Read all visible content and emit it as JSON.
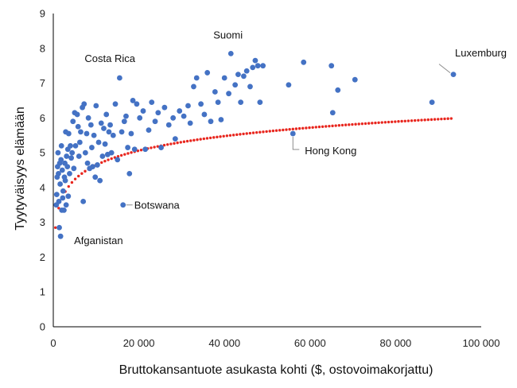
{
  "chart_data": {
    "type": "scatter",
    "xlabel": "Bruttokansantuote asukasta kohti ($, ostovoimakorjattu)",
    "ylabel": "Tyytyväisyys elämään",
    "xlim": [
      0,
      100000
    ],
    "ylim": [
      0,
      9
    ],
    "x_ticks": [
      0,
      20000,
      40000,
      60000,
      80000,
      100000
    ],
    "x_tick_labels": [
      "0",
      "20 000",
      "40 000",
      "60 000",
      "80 000",
      "100 000"
    ],
    "y_ticks": [
      0,
      1,
      2,
      3,
      4,
      5,
      6,
      7,
      8,
      9
    ],
    "y_tick_labels": [
      "0",
      "1",
      "2",
      "3",
      "4",
      "5",
      "6",
      "7",
      "8",
      "9"
    ],
    "grid": false,
    "legend": "none",
    "colors": {
      "points": "#4472c4",
      "trend": "#e8261e",
      "axis": "#000000",
      "leader": "#8c8c8c"
    },
    "trendline": {
      "type": "logarithmic",
      "a": 0.6,
      "b": -0.88,
      "x_start": 500,
      "x_end": 93000
    },
    "points": [
      [
        700,
        3.5
      ],
      [
        800,
        3.8
      ],
      [
        900,
        4.3
      ],
      [
        1000,
        4.6
      ],
      [
        1100,
        5.0
      ],
      [
        1200,
        4.4
      ],
      [
        1300,
        3.6
      ],
      [
        1400,
        2.85
      ],
      [
        1500,
        4.7
      ],
      [
        1600,
        4.1
      ],
      [
        1700,
        2.6
      ],
      [
        1800,
        4.8
      ],
      [
        1900,
        5.2
      ],
      [
        2000,
        3.35
      ],
      [
        2100,
        4.5
      ],
      [
        2200,
        3.7
      ],
      [
        2300,
        3.9
      ],
      [
        2500,
        3.35
      ],
      [
        2600,
        4.3
      ],
      [
        2700,
        4.7
      ],
      [
        2800,
        4.2
      ],
      [
        2900,
        5.6
      ],
      [
        3000,
        3.5
      ],
      [
        3100,
        4.9
      ],
      [
        3300,
        4.6
      ],
      [
        3400,
        5.1
      ],
      [
        3500,
        3.75
      ],
      [
        3600,
        5.55
      ],
      [
        3800,
        4.4
      ],
      [
        4000,
        5.2
      ],
      [
        4200,
        4.85
      ],
      [
        4400,
        5.0
      ],
      [
        4600,
        5.9
      ],
      [
        4800,
        4.55
      ],
      [
        5000,
        6.15
      ],
      [
        5200,
        5.2
      ],
      [
        5600,
        6.1
      ],
      [
        5800,
        5.75
      ],
      [
        6000,
        4.9
      ],
      [
        6200,
        5.3
      ],
      [
        6400,
        5.6
      ],
      [
        6800,
        6.3
      ],
      [
        7000,
        3.6
      ],
      [
        7200,
        6.4
      ],
      [
        7500,
        5.0
      ],
      [
        7800,
        5.55
      ],
      [
        8000,
        4.7
      ],
      [
        8200,
        6.0
      ],
      [
        8500,
        4.55
      ],
      [
        8800,
        5.8
      ],
      [
        9000,
        5.15
      ],
      [
        9200,
        4.6
      ],
      [
        9500,
        5.5
      ],
      [
        9800,
        4.3
      ],
      [
        10000,
        6.35
      ],
      [
        10300,
        4.65
      ],
      [
        10600,
        5.3
      ],
      [
        10900,
        4.2
      ],
      [
        11200,
        5.85
      ],
      [
        11500,
        4.9
      ],
      [
        11800,
        5.7
      ],
      [
        12100,
        5.25
      ],
      [
        12400,
        6.1
      ],
      [
        12700,
        4.95
      ],
      [
        13000,
        5.6
      ],
      [
        13300,
        5.8
      ],
      [
        13600,
        5.0
      ],
      [
        14000,
        5.5
      ],
      [
        14500,
        6.4
      ],
      [
        15000,
        4.8
      ],
      [
        15500,
        7.15
      ],
      [
        16000,
        5.6
      ],
      [
        16300,
        3.5
      ],
      [
        16600,
        5.9
      ],
      [
        17000,
        6.05
      ],
      [
        17400,
        5.15
      ],
      [
        17800,
        4.4
      ],
      [
        18200,
        5.55
      ],
      [
        18600,
        6.5
      ],
      [
        19000,
        5.1
      ],
      [
        19500,
        6.4
      ],
      [
        20200,
        6.0
      ],
      [
        21000,
        6.2
      ],
      [
        21500,
        5.1
      ],
      [
        22300,
        5.65
      ],
      [
        23000,
        6.45
      ],
      [
        23800,
        5.9
      ],
      [
        24500,
        6.15
      ],
      [
        25200,
        5.15
      ],
      [
        26000,
        6.3
      ],
      [
        27000,
        5.8
      ],
      [
        28000,
        6.0
      ],
      [
        28500,
        5.4
      ],
      [
        29500,
        6.2
      ],
      [
        30500,
        6.05
      ],
      [
        31500,
        6.35
      ],
      [
        32000,
        5.85
      ],
      [
        32800,
        6.9
      ],
      [
        33500,
        7.15
      ],
      [
        34500,
        6.4
      ],
      [
        35300,
        6.1
      ],
      [
        36000,
        7.3
      ],
      [
        36800,
        5.9
      ],
      [
        37800,
        6.75
      ],
      [
        38500,
        6.45
      ],
      [
        39200,
        5.95
      ],
      [
        40000,
        7.15
      ],
      [
        41000,
        6.7
      ],
      [
        41500,
        7.85
      ],
      [
        42500,
        6.95
      ],
      [
        43200,
        7.25
      ],
      [
        43800,
        6.45
      ],
      [
        44500,
        7.2
      ],
      [
        45200,
        7.35
      ],
      [
        46000,
        6.9
      ],
      [
        46600,
        7.45
      ],
      [
        47200,
        7.65
      ],
      [
        47800,
        7.5
      ],
      [
        48300,
        6.45
      ],
      [
        49000,
        7.5
      ],
      [
        55000,
        6.95
      ],
      [
        56000,
        5.55
      ],
      [
        58500,
        7.6
      ],
      [
        65000,
        7.5
      ],
      [
        65300,
        6.15
      ],
      [
        66500,
        6.8
      ],
      [
        70500,
        7.1
      ],
      [
        88500,
        6.45
      ],
      [
        93500,
        7.25
      ]
    ],
    "annotations": [
      {
        "label": "Suomi",
        "x": 41500,
        "y": 7.85,
        "leader": false
      },
      {
        "label": "Costa Rica",
        "x": 15500,
        "y": 7.15,
        "leader": false
      },
      {
        "label": "Luxemburg",
        "x": 93500,
        "y": 7.25,
        "leader": true
      },
      {
        "label": "Hong Kong",
        "x": 56000,
        "y": 5.55,
        "leader": true
      },
      {
        "label": "Botswana",
        "x": 16300,
        "y": 3.5,
        "leader": true
      },
      {
        "label": "Afganistan",
        "x": 1700,
        "y": 2.6,
        "leader": false
      }
    ]
  }
}
